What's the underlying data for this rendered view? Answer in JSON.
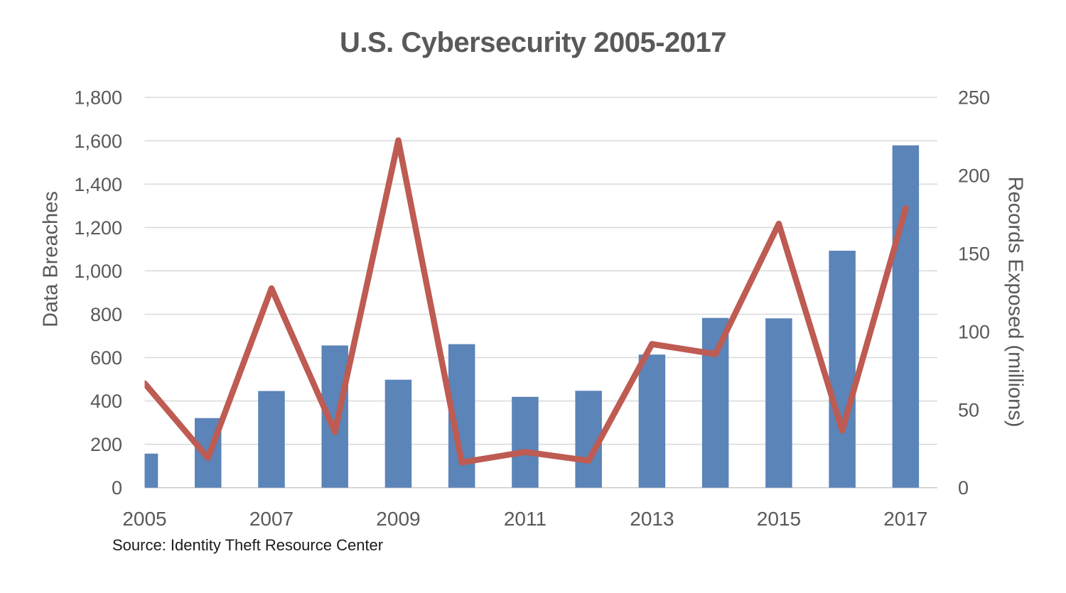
{
  "title": "U.S. Cybersecurity 2005-2017",
  "source": "Source: Identity Theft Resource Center",
  "chart_data": {
    "type": "bar",
    "subtype": "combo-bar-line-dual-axis",
    "title": "U.S. Cybersecurity 2005-2017",
    "categories": [
      "2005",
      "2006",
      "2007",
      "2008",
      "2009",
      "2010",
      "2011",
      "2012",
      "2013",
      "2014",
      "2015",
      "2016",
      "2017"
    ],
    "series": [
      {
        "name": "Data Breaches",
        "type": "bar",
        "axis": "left",
        "color": "#5B84B8",
        "values": [
          157,
          321,
          446,
          656,
          498,
          662,
          419,
          447,
          614,
          783,
          781,
          1093,
          1579
        ]
      },
      {
        "name": "Records Exposed (millions)",
        "type": "line",
        "axis": "right",
        "color": "#BE5B52",
        "values": [
          66.9,
          19.1,
          127.7,
          35.7,
          222.5,
          16.2,
          22.9,
          17.3,
          92.0,
          85.6,
          169.1,
          36.6,
          179.0
        ]
      }
    ],
    "left_axis": {
      "label": "Data Breaches",
      "min": 0,
      "max": 1800,
      "step": 200,
      "tick_labels": [
        "0",
        "200",
        "400",
        "600",
        "800",
        "1,000",
        "1,200",
        "1,400",
        "1,600",
        "1,800"
      ]
    },
    "right_axis": {
      "label": "Records Exposed (millions)",
      "min": 0,
      "max": 250,
      "step": 50,
      "tick_labels": [
        "0",
        "50",
        "100",
        "150",
        "200",
        "250"
      ]
    },
    "x_axis": {
      "visible_tick_labels": [
        "2005",
        "2007",
        "2009",
        "2011",
        "2013",
        "2015",
        "2017"
      ],
      "labeled_every": 2
    },
    "grid": true,
    "legend": false,
    "annotations": [
      "Source: Identity Theft Resource Center"
    ],
    "colors": {
      "gridline": "#D9D9D9",
      "baseline": "#C8C8C8",
      "tick_text": "#595959",
      "title_text": "#595959",
      "source_text": "#1A1A1A"
    }
  }
}
